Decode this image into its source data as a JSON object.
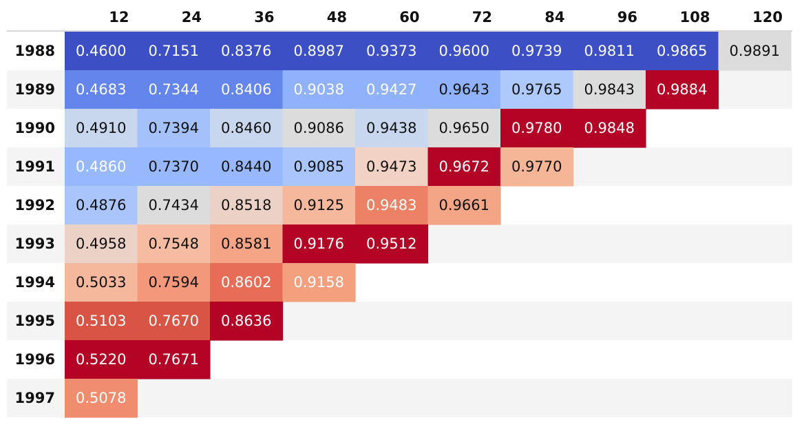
{
  "chart_data": {
    "type": "heatmap",
    "title": "",
    "xlabel": "",
    "ylabel": "",
    "columns": [
      "12",
      "24",
      "36",
      "48",
      "60",
      "72",
      "84",
      "96",
      "108",
      "120"
    ],
    "rows": [
      {
        "label": "1988",
        "values": [
          "0.4600",
          "0.7151",
          "0.8376",
          "0.8987",
          "0.9373",
          "0.9600",
          "0.9739",
          "0.9811",
          "0.9865",
          "0.9891"
        ],
        "colors": [
          "#3d4fc4",
          "#3d4fc4",
          "#3d4fc4",
          "#3d4fc4",
          "#3d4fc4",
          "#3d4fc4",
          "#3d4fc4",
          "#3d4fc4",
          "#3d4fc4",
          "#dcdcdc"
        ]
      },
      {
        "label": "1989",
        "values": [
          "0.4683",
          "0.7344",
          "0.8406",
          "0.9038",
          "0.9427",
          "0.9643",
          "0.9765",
          "0.9843",
          "0.9884"
        ],
        "colors": [
          "#6485eb",
          "#6485eb",
          "#6485eb",
          "#90b1fb",
          "#90b1fb",
          "#90b1fb",
          "#aec9fc",
          "#dcdcdc",
          "#b40426"
        ]
      },
      {
        "label": "1990",
        "values": [
          "0.4910",
          "0.7394",
          "0.8460",
          "0.9086",
          "0.9438",
          "0.9650",
          "0.9780",
          "0.9848"
        ],
        "colors": [
          "#c8d6ee",
          "#a5c1fb",
          "#c8d6ee",
          "#dcdcdc",
          "#c8d6ee",
          "#dcdcdc",
          "#b40426",
          "#b40426"
        ]
      },
      {
        "label": "1991",
        "values": [
          "0.4860",
          "0.7370",
          "0.8440",
          "0.9085",
          "0.9473",
          "0.9672",
          "0.9770"
        ],
        "colors": [
          "#98b8fe",
          "#98b8fe",
          "#98b8fe",
          "#a9c5fc",
          "#f1d2c4",
          "#b40426",
          "#f5b597"
        ]
      },
      {
        "label": "1992",
        "values": [
          "0.4876",
          "0.7434",
          "0.8518",
          "0.9125",
          "0.9483",
          "0.9661"
        ],
        "colors": [
          "#a9c5fc",
          "#dcdcdc",
          "#ecd2c6",
          "#f6b89c",
          "#ec8165",
          "#f4a585"
        ]
      },
      {
        "label": "1993",
        "values": [
          "0.4958",
          "0.7548",
          "0.8581",
          "0.9176",
          "0.9512"
        ],
        "colors": [
          "#ecd2c6",
          "#f6bca1",
          "#f5a585",
          "#b40426",
          "#b40426"
        ]
      },
      {
        "label": "1994",
        "values": [
          "0.5033",
          "0.7594",
          "0.8602",
          "0.9158"
        ],
        "colors": [
          "#f6b89c",
          "#f3987a",
          "#e76d57",
          "#f4a07f"
        ]
      },
      {
        "label": "1995",
        "values": [
          "0.5103",
          "0.7670",
          "0.8636"
        ],
        "colors": [
          "#d85444",
          "#d85444",
          "#b40426"
        ]
      },
      {
        "label": "1996",
        "values": [
          "0.5220",
          "0.7671"
        ],
        "colors": [
          "#b40426",
          "#b40426"
        ]
      },
      {
        "label": "1997",
        "values": [
          "0.5078"
        ],
        "colors": [
          "#f18d6f"
        ]
      }
    ],
    "light_text_cells": [
      [
        "1988",
        "12"
      ],
      [
        "1988",
        "24"
      ],
      [
        "1988",
        "36"
      ],
      [
        "1988",
        "48"
      ],
      [
        "1988",
        "60"
      ],
      [
        "1988",
        "72"
      ],
      [
        "1988",
        "84"
      ],
      [
        "1988",
        "96"
      ],
      [
        "1988",
        "108"
      ],
      [
        "1989",
        "12"
      ],
      [
        "1989",
        "24"
      ],
      [
        "1989",
        "36"
      ],
      [
        "1989",
        "48"
      ],
      [
        "1989",
        "60"
      ],
      [
        "1989",
        "108"
      ],
      [
        "1990",
        "84"
      ],
      [
        "1990",
        "96"
      ],
      [
        "1991",
        "12"
      ],
      [
        "1991",
        "72"
      ],
      [
        "1992",
        "60"
      ],
      [
        "1993",
        "48"
      ],
      [
        "1993",
        "60"
      ],
      [
        "1994",
        "36"
      ],
      [
        "1994",
        "48"
      ],
      [
        "1995",
        "12"
      ],
      [
        "1995",
        "24"
      ],
      [
        "1995",
        "36"
      ],
      [
        "1996",
        "12"
      ],
      [
        "1996",
        "24"
      ],
      [
        "1997",
        "12"
      ]
    ],
    "colors": {
      "stripe": "#f4f4f4",
      "header_rule": "#cccccc",
      "dark_text": "#111111",
      "light_text": "#ffffff"
    }
  }
}
